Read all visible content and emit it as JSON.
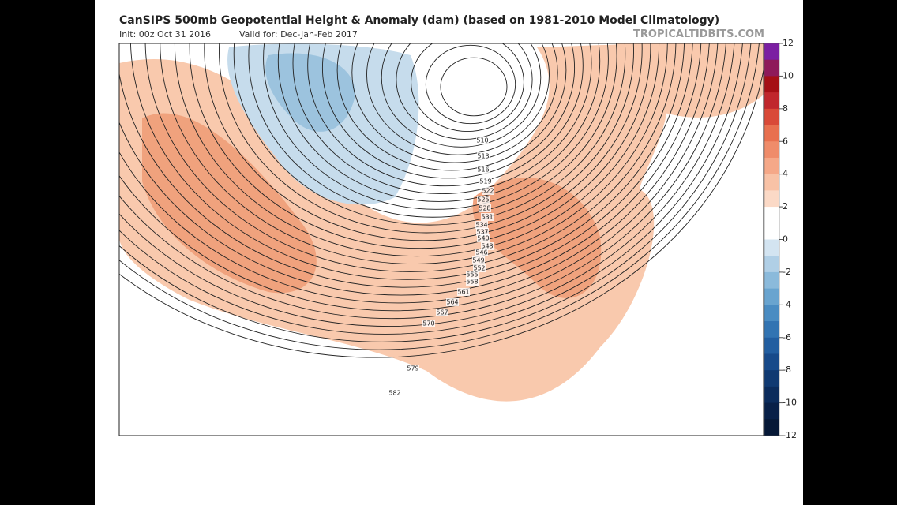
{
  "header": {
    "title": "CanSIPS 500mb Geopotential Height & Anomaly (dam) (based on 1981-2010 Model Climatology)",
    "init": "Init: 00z Oct 31 2016",
    "valid": "Valid for: Dec-Jan-Feb 2017",
    "source": "TROPICALTIDBITS.COM"
  },
  "colorbar": {
    "ticks": [
      12,
      10,
      8,
      6,
      4,
      2,
      0,
      -2,
      -4,
      -6,
      -8,
      -10,
      -12
    ]
  },
  "contour_labels": [
    "510",
    "513",
    "516",
    "519",
    "522",
    "525",
    "528",
    "531",
    "534",
    "537",
    "540",
    "543",
    "546",
    "549",
    "552",
    "555",
    "558",
    "561",
    "564",
    "567",
    "570",
    "579",
    "582"
  ]
}
